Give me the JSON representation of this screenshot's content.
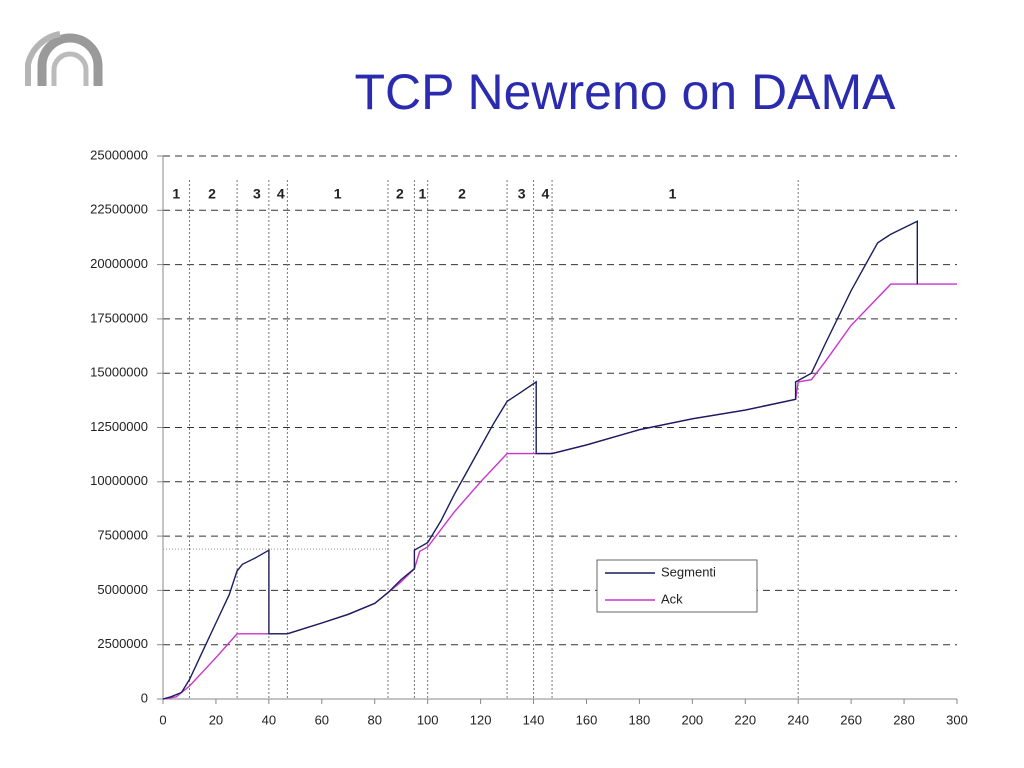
{
  "chart_data": {
    "type": "line",
    "title": "TCP Newreno on DAMA",
    "xlim": [
      0,
      300
    ],
    "xticks": [
      0,
      20,
      40,
      60,
      80,
      100,
      120,
      140,
      160,
      180,
      200,
      220,
      240,
      260,
      280,
      300
    ],
    "ylim": [
      0,
      25000000
    ],
    "yticks": [
      0,
      2500000,
      5000000,
      7500000,
      10000000,
      12500000,
      15000000,
      17500000,
      20000000,
      22500000,
      25000000
    ],
    "grid": true,
    "phase_boundaries": [
      10,
      28,
      40,
      47,
      85,
      95,
      100,
      130,
      140,
      147,
      240
    ],
    "phase_labels": [
      {
        "text": "1",
        "x": 5
      },
      {
        "text": "2",
        "x": 18.5
      },
      {
        "text": "3",
        "x": 35.5
      },
      {
        "text": "4",
        "x": 44.5
      },
      {
        "text": "1",
        "x": 66
      },
      {
        "text": "2",
        "x": 89.5
      },
      {
        "text": "1",
        "x": 98
      },
      {
        "text": "2",
        "x": 113
      },
      {
        "text": "3",
        "x": 135.5
      },
      {
        "text": "4",
        "x": 144.5
      },
      {
        "text": "1",
        "x": 192.5
      }
    ],
    "reference_line": {
      "y": 6900000,
      "x": [
        0,
        85
      ]
    },
    "series": [
      {
        "name": "Segmenti",
        "color": "#1a1f5c",
        "x": [
          0,
          3,
          7,
          10,
          15,
          20,
          25,
          28,
          30,
          35,
          40,
          40,
          47,
          60,
          70,
          80,
          85,
          90,
          95,
          95,
          100,
          105,
          110,
          115,
          120,
          125,
          130,
          135,
          141,
          141,
          147,
          160,
          180,
          200,
          220,
          239,
          239,
          245,
          250,
          260,
          270,
          275,
          285,
          285
        ],
        "values": [
          0,
          100000,
          300000,
          900000,
          2200000,
          3500000,
          4800000,
          5900000,
          6200000,
          6500000,
          6850000,
          3000000,
          3000000,
          3500000,
          3900000,
          4400000,
          4900000,
          5500000,
          6000000,
          6850000,
          7200000,
          8200000,
          9400000,
          10500000,
          11600000,
          12700000,
          13700000,
          14100000,
          14600000,
          11300000,
          11300000,
          11700000,
          12400000,
          12900000,
          13300000,
          13800000,
          14600000,
          15000000,
          16300000,
          18800000,
          21000000,
          21400000,
          22000000,
          19100000
        ]
      },
      {
        "name": "Ack",
        "color": "#cc33cc",
        "x": [
          0,
          5,
          10,
          20,
          28,
          47,
          60,
          70,
          80,
          85,
          90,
          95,
          97,
          100,
          110,
          120,
          130,
          147,
          160,
          180,
          200,
          220,
          239,
          240,
          245,
          250,
          260,
          275,
          300
        ],
        "values": [
          0,
          100000,
          600000,
          1900000,
          3000000,
          3000000,
          3500000,
          3900000,
          4400000,
          4900000,
          5400000,
          6000000,
          6800000,
          7000000,
          8600000,
          10000000,
          11300000,
          11300000,
          11700000,
          12400000,
          12900000,
          13300000,
          13800000,
          14600000,
          14700000,
          15500000,
          17200000,
          19100000,
          19100000
        ]
      }
    ]
  }
}
